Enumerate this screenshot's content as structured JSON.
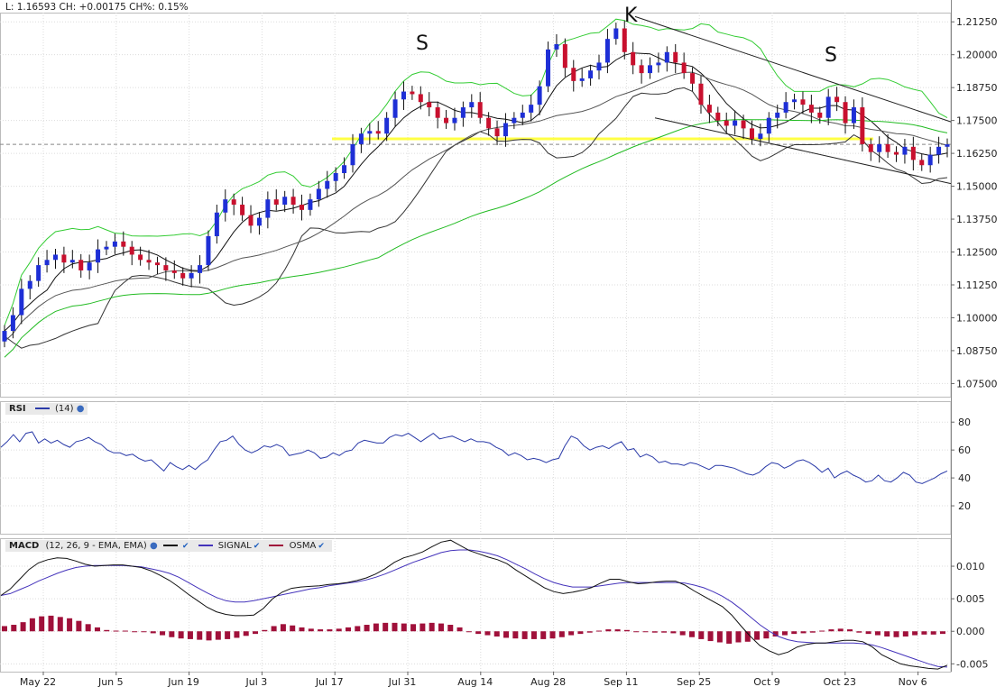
{
  "header": {
    "last_label": "L:",
    "last_value": "1.16593",
    "change_label": "CH:",
    "change_value": "+0.00175",
    "change_pct_label": "CH%:",
    "change_pct_value": "0.15%"
  },
  "annotations": {
    "left_shoulder": "S",
    "head": "K",
    "right_shoulder": "S"
  },
  "rsi_legend": {
    "name": "RSI",
    "params": "(14)"
  },
  "macd_legend": {
    "name": "MACD",
    "params": "(12, 26, 9 - EMA, EMA)",
    "signal": "SIGNAL",
    "osma": "OSMA"
  },
  "colors": {
    "bull": "#1e2fd6",
    "bear": "#c8102e",
    "bollinger": "#33cc33",
    "sma200": "#22bb22",
    "envelope": "#444444",
    "support": "#ffff44",
    "rsi": "#2a3aa8",
    "macd": "#111111",
    "signal": "#4433bb",
    "osma": "#a0103a",
    "grid": "#dcdcdc"
  },
  "chart_data": [
    {
      "type": "candlestick",
      "title": "",
      "x_tick_labels": [
        "May 22",
        "Jun 5",
        "Jun 19",
        "Jul 3",
        "Jul 17",
        "Jul 31",
        "Aug 14",
        "Aug 28",
        "Sep 11",
        "Sep 25",
        "Oct 9",
        "Oct 23",
        "Nov 6"
      ],
      "y_tick_labels": [
        "1.21250",
        "1.20000",
        "1.18750",
        "1.17500",
        "1.16250",
        "1.15000",
        "1.13750",
        "1.12500",
        "1.11250",
        "1.10000",
        "1.08750",
        "1.07500"
      ],
      "ylim": [
        1.07,
        1.216
      ],
      "last_price": 1.16593,
      "support_level": 1.168,
      "closes": [
        1.095,
        1.101,
        1.111,
        1.114,
        1.12,
        1.122,
        1.124,
        1.121,
        1.122,
        1.118,
        1.121,
        1.126,
        1.127,
        1.129,
        1.127,
        1.124,
        1.122,
        1.121,
        1.12,
        1.118,
        1.117,
        1.115,
        1.117,
        1.12,
        1.131,
        1.14,
        1.145,
        1.143,
        1.139,
        1.135,
        1.138,
        1.145,
        1.143,
        1.146,
        1.143,
        1.141,
        1.145,
        1.149,
        1.152,
        1.155,
        1.158,
        1.166,
        1.17,
        1.171,
        1.17,
        1.176,
        1.183,
        1.186,
        1.185,
        1.182,
        1.18,
        1.176,
        1.174,
        1.176,
        1.18,
        1.182,
        1.176,
        1.172,
        1.169,
        1.174,
        1.176,
        1.178,
        1.181,
        1.188,
        1.202,
        1.204,
        1.195,
        1.19,
        1.191,
        1.194,
        1.197,
        1.206,
        1.21,
        1.201,
        1.196,
        1.193,
        1.196,
        1.197,
        1.201,
        1.197,
        1.193,
        1.189,
        1.181,
        1.178,
        1.175,
        1.173,
        1.175,
        1.172,
        1.168,
        1.17,
        1.176,
        1.178,
        1.182,
        1.183,
        1.181,
        1.178,
        1.176,
        1.184,
        1.182,
        1.174,
        1.18,
        1.166,
        1.163,
        1.166,
        1.163,
        1.162,
        1.165,
        1.16,
        1.158,
        1.162,
        1.165,
        1.16593
      ],
      "candle_count": 112
    },
    {
      "type": "line",
      "title": "",
      "series": [
        {
          "name": "RSI",
          "params": "(14)"
        }
      ],
      "y_tick_labels": [
        "80",
        "60",
        "40",
        "20"
      ],
      "ylim": [
        0,
        95
      ],
      "values": [
        62,
        66,
        71,
        66,
        72,
        73,
        65,
        68,
        65,
        67,
        64,
        62,
        66,
        67,
        69,
        66,
        64,
        60,
        58,
        58,
        56,
        57,
        54,
        52,
        53,
        49,
        45,
        51,
        48,
        46,
        49,
        46,
        50,
        53,
        60,
        66,
        67,
        70,
        64,
        60,
        58,
        60,
        63,
        62,
        64,
        62,
        56,
        57,
        58,
        60,
        58,
        54,
        55,
        58,
        56,
        59,
        60,
        65,
        67,
        66,
        65,
        65,
        69,
        71,
        70,
        72,
        69,
        66,
        69,
        72,
        68,
        69,
        70,
        68,
        66,
        68,
        66,
        66,
        65,
        62,
        60,
        56,
        58,
        56,
        53,
        54,
        53,
        51,
        53,
        54,
        63,
        70,
        68,
        63,
        60,
        62,
        63,
        61,
        64,
        66,
        60,
        61,
        55,
        57,
        55,
        51,
        52,
        50,
        50,
        49,
        51,
        50,
        48,
        46,
        49,
        49,
        48,
        47,
        45,
        43,
        42,
        44,
        48,
        51,
        50,
        47,
        49,
        52,
        53,
        51,
        48,
        44,
        47,
        40,
        43,
        45,
        42,
        40,
        37,
        38,
        42,
        38,
        37,
        40,
        44,
        42,
        37,
        36,
        38,
        40,
        43,
        45
      ],
      "series_tags": []
    },
    {
      "type": "line",
      "title": "",
      "series": [
        {
          "name": "MACD",
          "params": "(12, 26, 9 - EMA, EMA)"
        },
        {
          "name": "SIGNAL"
        },
        {
          "name": "OSMA"
        }
      ],
      "y_tick_labels": [
        "0.010",
        "0.005",
        "0.000",
        "-0.005"
      ],
      "ylim": [
        -0.0062,
        0.0143
      ],
      "macd": [
        0.0055,
        0.0065,
        0.008,
        0.0095,
        0.0105,
        0.011,
        0.0113,
        0.0112,
        0.0108,
        0.0103,
        0.01,
        0.0101,
        0.0102,
        0.0102,
        0.01,
        0.0098,
        0.0093,
        0.0086,
        0.0078,
        0.0068,
        0.0057,
        0.0047,
        0.0037,
        0.003,
        0.0026,
        0.0024,
        0.0024,
        0.0025,
        0.0035,
        0.005,
        0.006,
        0.0066,
        0.0068,
        0.0069,
        0.007,
        0.0072,
        0.0073,
        0.0075,
        0.0078,
        0.0082,
        0.0088,
        0.0096,
        0.0106,
        0.0113,
        0.0117,
        0.0122,
        0.013,
        0.0137,
        0.014,
        0.0132,
        0.0124,
        0.0119,
        0.0114,
        0.011,
        0.0104,
        0.0094,
        0.0085,
        0.0076,
        0.0067,
        0.0061,
        0.0058,
        0.006,
        0.0063,
        0.0067,
        0.0074,
        0.008,
        0.008,
        0.0076,
        0.0073,
        0.0074,
        0.0076,
        0.0077,
        0.0077,
        0.0071,
        0.0062,
        0.0054,
        0.0046,
        0.0038,
        0.0025,
        0.0008,
        -0.0008,
        -0.0022,
        -0.003,
        -0.0036,
        -0.0032,
        -0.0024,
        -0.002,
        -0.0018,
        -0.0018,
        -0.0016,
        -0.0014,
        -0.0014,
        -0.0016,
        -0.0024,
        -0.0036,
        -0.0043,
        -0.005,
        -0.0053,
        -0.0055,
        -0.0057,
        -0.0058,
        -0.0052
      ],
      "signal": [
        0.0055,
        0.0058,
        0.0064,
        0.007,
        0.0077,
        0.0083,
        0.0089,
        0.0094,
        0.0098,
        0.01,
        0.0101,
        0.0101,
        0.0101,
        0.0101,
        0.01,
        0.0099,
        0.0096,
        0.0093,
        0.0089,
        0.0083,
        0.0075,
        0.0067,
        0.0059,
        0.0052,
        0.0047,
        0.0045,
        0.0045,
        0.0047,
        0.005,
        0.0053,
        0.0056,
        0.0059,
        0.0062,
        0.0065,
        0.0067,
        0.007,
        0.0072,
        0.0074,
        0.0076,
        0.0079,
        0.0083,
        0.0088,
        0.0094,
        0.01,
        0.0106,
        0.0111,
        0.0116,
        0.0121,
        0.0124,
        0.0125,
        0.0125,
        0.0123,
        0.012,
        0.0116,
        0.011,
        0.0103,
        0.0096,
        0.0088,
        0.0081,
        0.0075,
        0.0071,
        0.0068,
        0.0068,
        0.0068,
        0.007,
        0.0072,
        0.0074,
        0.0075,
        0.0075,
        0.0075,
        0.0075,
        0.0075,
        0.0075,
        0.0074,
        0.0071,
        0.0067,
        0.0061,
        0.0054,
        0.0045,
        0.0034,
        0.0022,
        0.001,
        0.0,
        -0.0008,
        -0.0013,
        -0.0016,
        -0.0017,
        -0.0018,
        -0.0018,
        -0.0018,
        -0.0018,
        -0.0018,
        -0.0019,
        -0.0021,
        -0.0025,
        -0.003,
        -0.0035,
        -0.004,
        -0.0045,
        -0.005,
        -0.0054,
        -0.0055
      ],
      "osma": [
        0.0008,
        0.001,
        0.0014,
        0.002,
        0.0023,
        0.0024,
        0.0022,
        0.002,
        0.0016,
        0.0011,
        0.0006,
        0.0002,
        0.0001,
        0.0001,
        0.0,
        -0.0001,
        -0.0003,
        -0.0006,
        -0.0009,
        -0.0011,
        -0.0012,
        -0.0013,
        -0.0014,
        -0.0013,
        -0.0012,
        -0.001,
        -0.0007,
        -0.0004,
        0.0002,
        0.0008,
        0.0011,
        0.0009,
        0.0006,
        0.0004,
        0.0003,
        0.0003,
        0.0004,
        0.0006,
        0.0008,
        0.001,
        0.0012,
        0.0013,
        0.0013,
        0.0012,
        0.0011,
        0.0012,
        0.0013,
        0.0012,
        0.001,
        0.0006,
        0.0,
        -0.0004,
        -0.0006,
        -0.0008,
        -0.001,
        -0.0011,
        -0.0012,
        -0.0012,
        -0.0012,
        -0.0011,
        -0.0009,
        -0.0006,
        -0.0004,
        -0.0002,
        0.0001,
        0.0003,
        0.0003,
        0.0002,
        0.0,
        -0.0001,
        -0.0002,
        -0.0002,
        -0.0003,
        -0.0006,
        -0.0009,
        -0.0012,
        -0.0015,
        -0.0017,
        -0.0019,
        -0.0017,
        -0.0016,
        -0.0013,
        -0.0011,
        -0.0008,
        -0.0006,
        -0.0004,
        -0.0003,
        -0.0002,
        0.0001,
        0.0003,
        0.0004,
        0.0003,
        -0.0002,
        -0.0004,
        -0.0006,
        -0.0008,
        -0.0009,
        -0.0008,
        -0.0006,
        -0.0005,
        -0.0005,
        -0.0004
      ]
    }
  ]
}
